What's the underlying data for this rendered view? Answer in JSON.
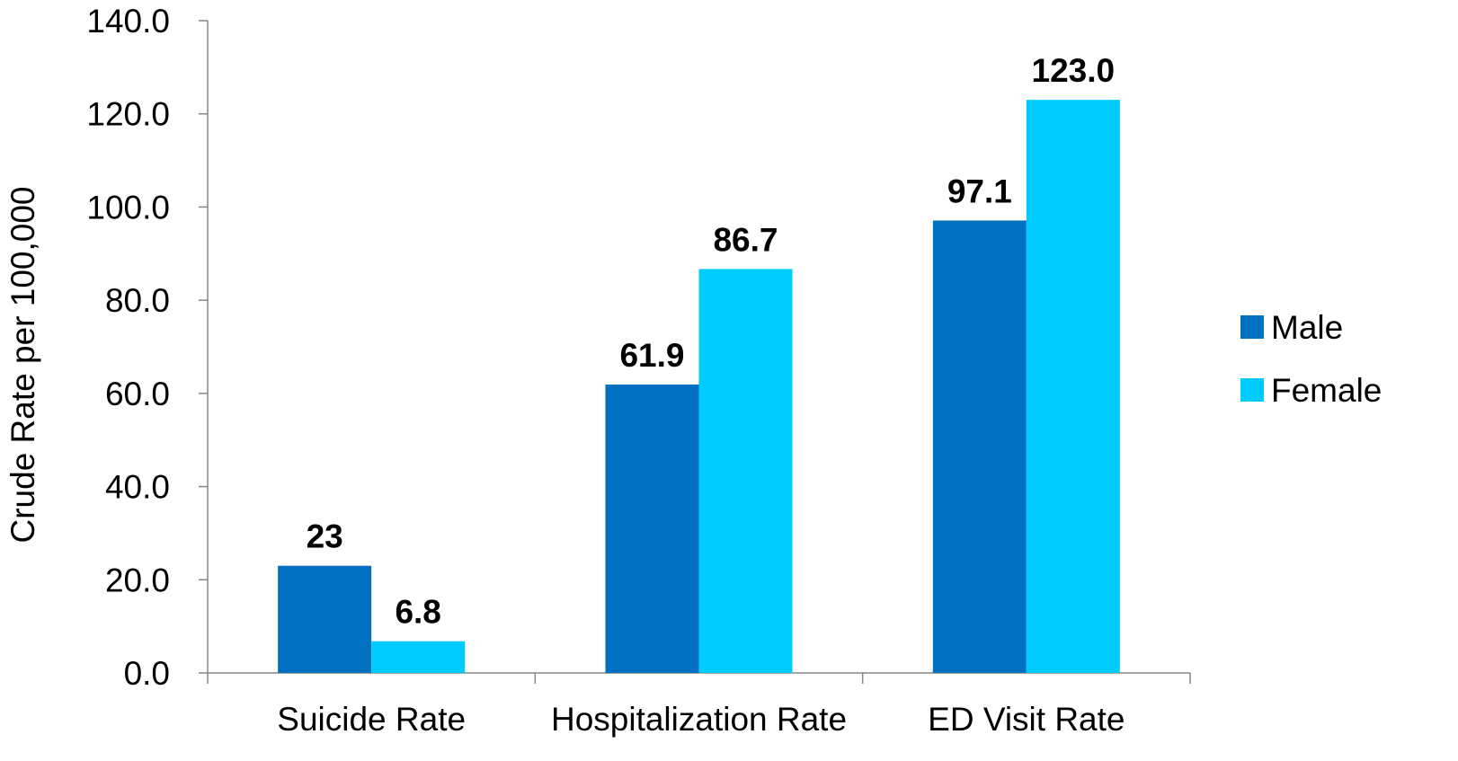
{
  "chart_data": {
    "type": "bar",
    "title": "",
    "xlabel": "",
    "ylabel": "Crude Rate per 100,000",
    "categories": [
      "Suicide Rate",
      "Hospitalization Rate",
      "ED Visit Rate"
    ],
    "series": [
      {
        "name": "Male",
        "color": "#0070c0",
        "values": [
          23,
          61.9,
          97.1
        ],
        "labels": [
          "23",
          "61.9",
          "97.1"
        ]
      },
      {
        "name": "Female",
        "color": "#00ccff",
        "values": [
          6.8,
          86.7,
          123.0
        ],
        "labels": [
          "6.8",
          "86.7",
          "123.0"
        ]
      }
    ],
    "ylim": [
      0,
      140
    ],
    "yticks": [
      "0.0",
      "20.0",
      "40.0",
      "60.0",
      "80.0",
      "100.0",
      "120.0",
      "140.0"
    ],
    "grid": false,
    "legend_position": "right"
  }
}
